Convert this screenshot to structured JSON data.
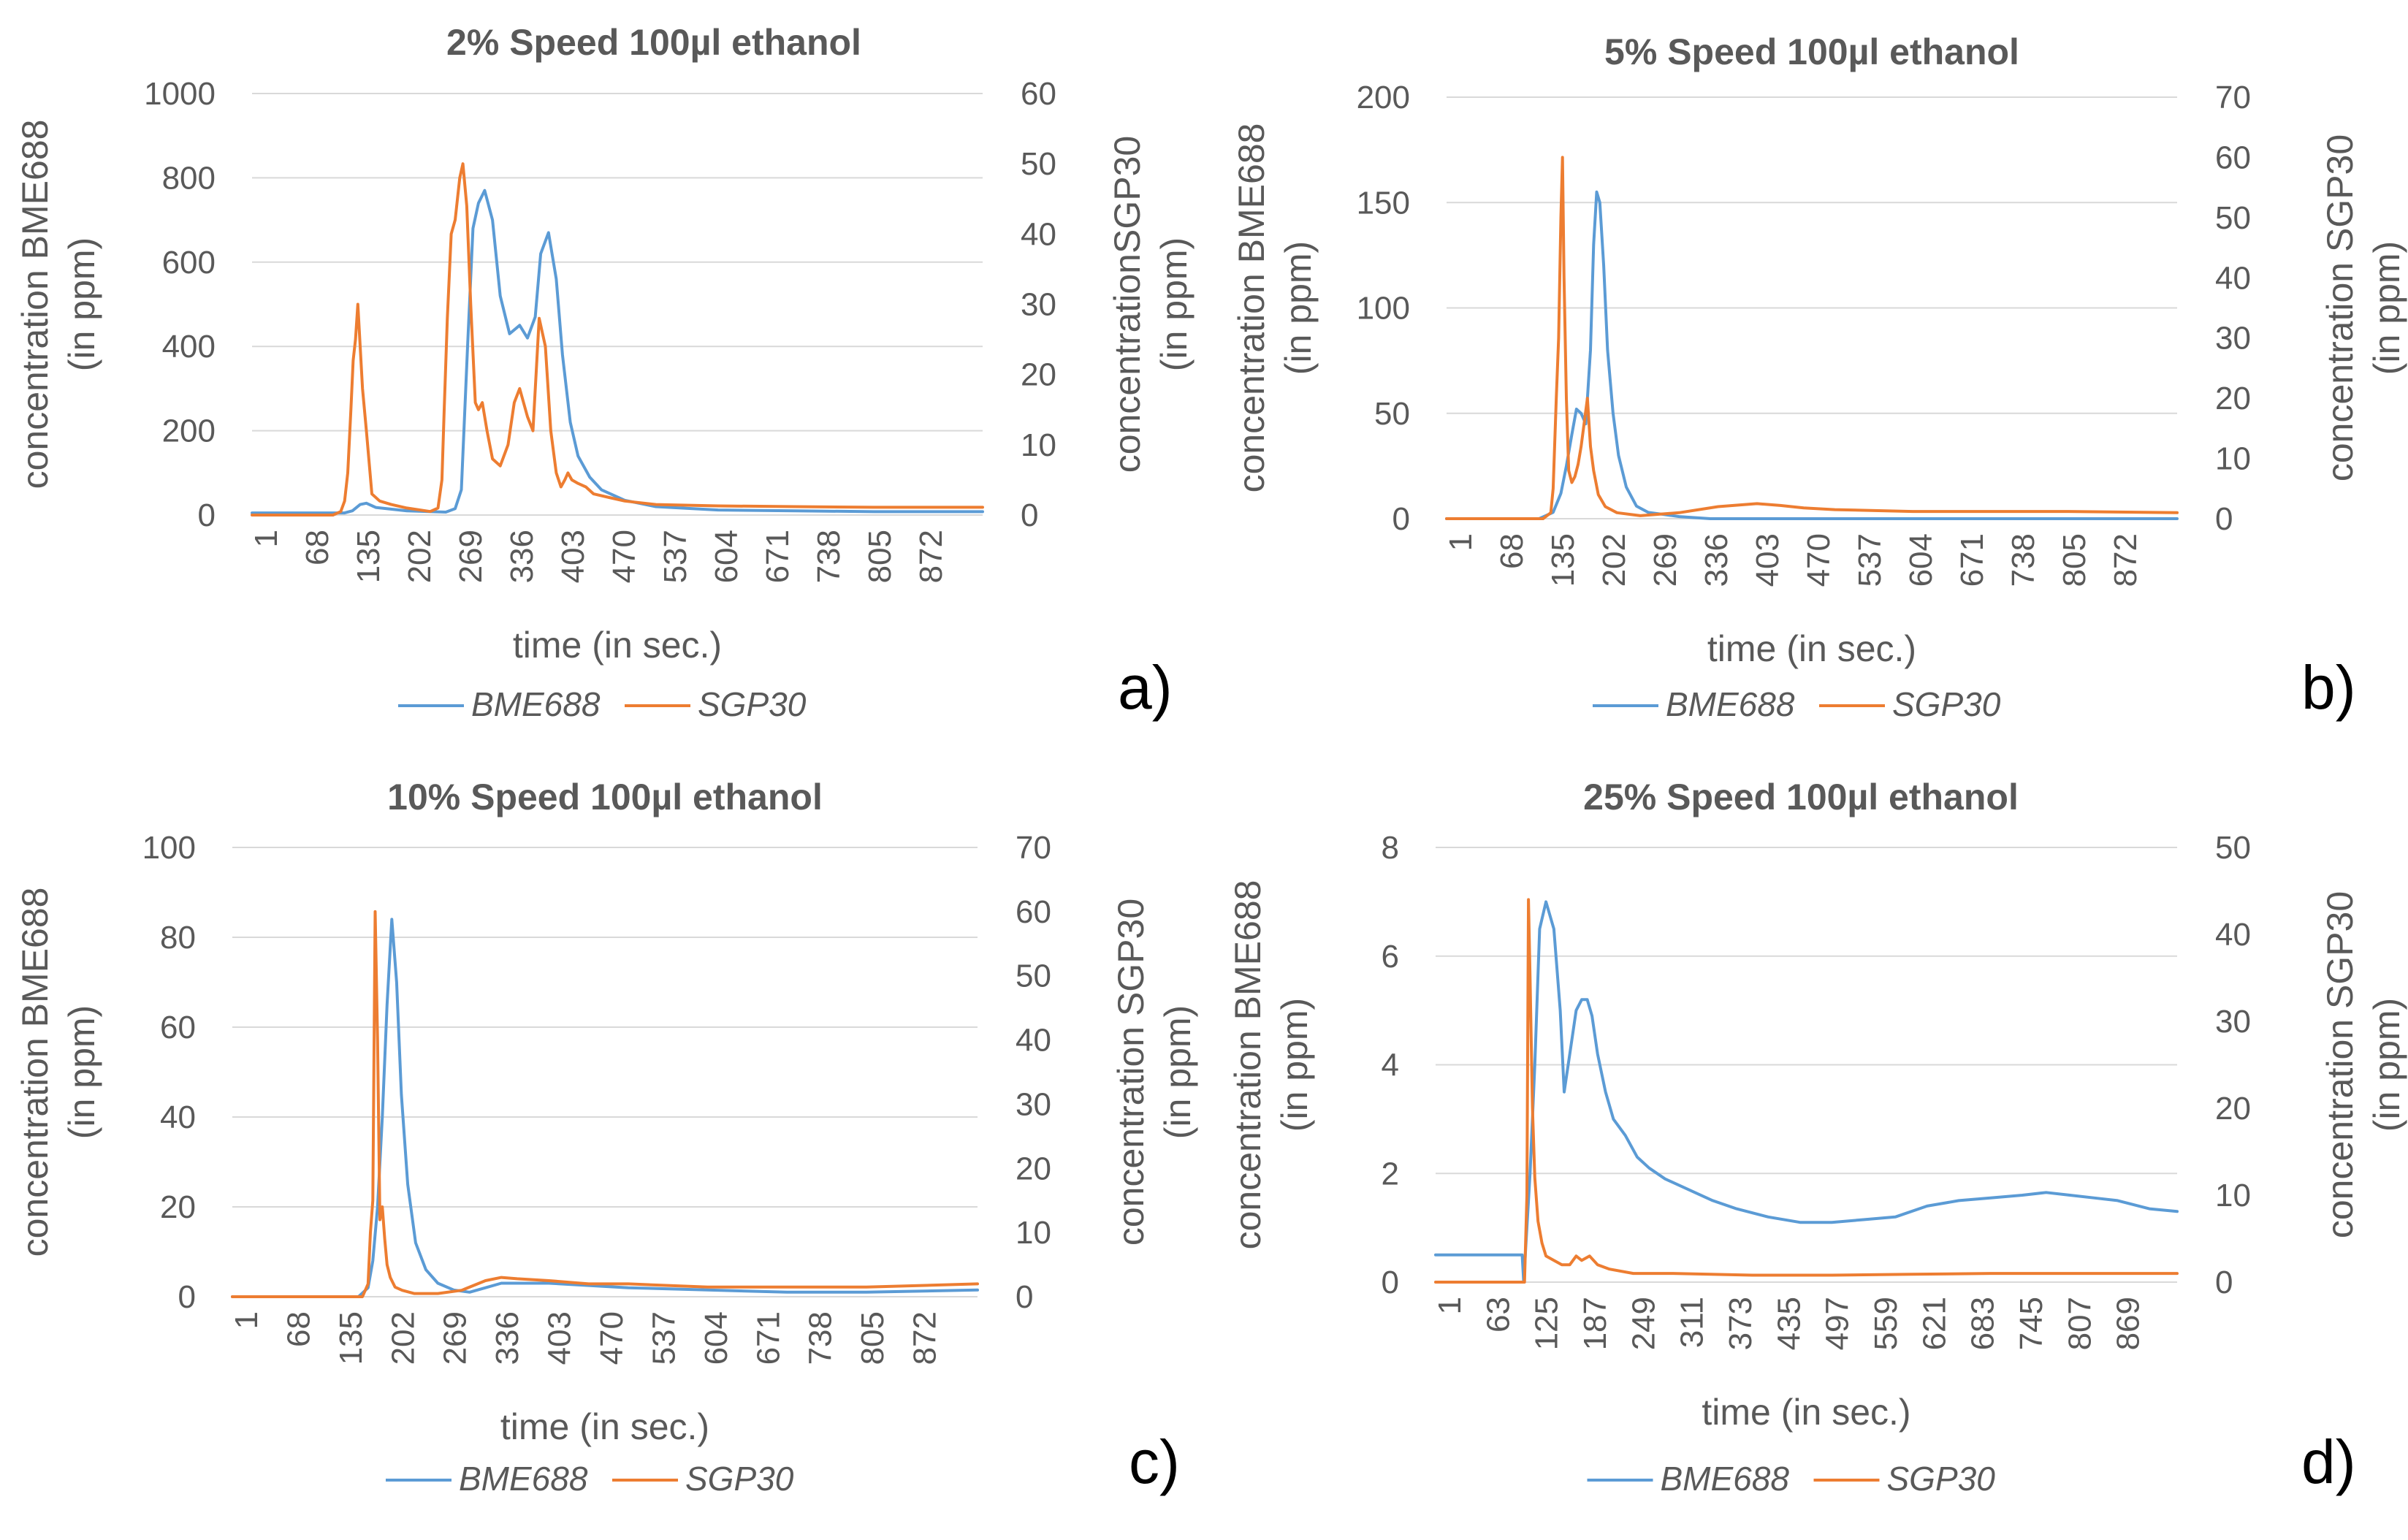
{
  "colors": {
    "bme": "#5b9bd5",
    "sgp": "#ed7d31",
    "grid": "#d9d9d9",
    "text": "#595959"
  },
  "chart_data": [
    {
      "type": "line",
      "panel_label": "a)",
      "title": "2% Speed 100µl ethanol",
      "xlabel": "time (in sec.)",
      "ylabel_left": [
        "concentration BME688",
        "(in ppm)"
      ],
      "ylabel_right": [
        "concentrationSGP30",
        "(in ppm)"
      ],
      "x_ticks": [
        "1",
        "68",
        "135",
        "202",
        "269",
        "336",
        "403",
        "470",
        "537",
        "604",
        "671",
        "738",
        "805",
        "872"
      ],
      "x_range": [
        1,
        940
      ],
      "ylim_left": [
        0,
        1000
      ],
      "yticks_left": [
        0,
        200,
        400,
        600,
        800,
        1000
      ],
      "ylim_right": [
        0,
        60
      ],
      "yticks_right": [
        0,
        10,
        20,
        30,
        40,
        50,
        60
      ],
      "legend": [
        "BME688",
        "SGP30"
      ],
      "series": [
        {
          "name": "BME688",
          "axis": "left",
          "x": [
            1,
            120,
            130,
            140,
            148,
            160,
            200,
            250,
            262,
            270,
            278,
            285,
            292,
            300,
            310,
            320,
            332,
            345,
            355,
            365,
            372,
            382,
            392,
            400,
            410,
            420,
            435,
            450,
            480,
            520,
            600,
            700,
            800,
            940
          ],
          "y": [
            5,
            5,
            10,
            25,
            28,
            18,
            10,
            7,
            15,
            60,
            400,
            680,
            740,
            770,
            700,
            520,
            430,
            450,
            420,
            470,
            620,
            670,
            560,
            380,
            220,
            140,
            90,
            60,
            35,
            20,
            12,
            10,
            8,
            8
          ]
        },
        {
          "name": "SGP30",
          "axis": "right",
          "x": [
            1,
            105,
            115,
            120,
            124,
            128,
            131,
            134,
            137,
            140,
            143,
            148,
            155,
            165,
            180,
            200,
            230,
            240,
            245,
            248,
            252,
            257,
            262,
            268,
            272,
            277,
            282,
            288,
            292,
            297,
            303,
            310,
            320,
            330,
            338,
            345,
            355,
            362,
            370,
            378,
            385,
            392,
            398,
            403,
            407,
            412,
            420,
            430,
            440,
            460,
            480,
            520,
            600,
            700,
            800,
            940
          ],
          "y": [
            0,
            0,
            0.5,
            2,
            6,
            15,
            22,
            25,
            30,
            24,
            18,
            12,
            3,
            2,
            1.5,
            1,
            0.5,
            1,
            5,
            15,
            28,
            40,
            42,
            48,
            50,
            44,
            30,
            16,
            15,
            16,
            12,
            8,
            7,
            10,
            16,
            18,
            14,
            12,
            28,
            24,
            12,
            6,
            4,
            5,
            6,
            5,
            4.5,
            4,
            3,
            2.5,
            2,
            1.5,
            1.3,
            1.2,
            1.1,
            1.1
          ]
        }
      ]
    },
    {
      "type": "line",
      "panel_label": "b)",
      "title": "5% Speed 100µl ethanol",
      "xlabel": "time (in sec.)",
      "ylabel_left": [
        "concentration BME688",
        "(in ppm)"
      ],
      "ylabel_right": [
        "concentration SGP30",
        "(in ppm)"
      ],
      "x_ticks": [
        "1",
        "68",
        "135",
        "202",
        "269",
        "336",
        "403",
        "470",
        "537",
        "604",
        "671",
        "738",
        "805",
        "872"
      ],
      "x_range": [
        1,
        940
      ],
      "ylim_left": [
        0,
        200
      ],
      "yticks_left": [
        0,
        50,
        100,
        150,
        200
      ],
      "ylim_right": [
        0,
        70
      ],
      "yticks_right": [
        0,
        10,
        20,
        30,
        40,
        50,
        60,
        70
      ],
      "legend": [
        "BME688",
        "SGP30"
      ],
      "series": [
        {
          "name": "BME688",
          "axis": "left",
          "x": [
            1,
            120,
            138,
            148,
            155,
            162,
            168,
            174,
            180,
            186,
            190,
            194,
            198,
            203,
            208,
            215,
            222,
            232,
            245,
            260,
            280,
            300,
            340,
            400,
            500,
            600,
            700,
            800,
            940
          ],
          "y": [
            0,
            0,
            3,
            12,
            25,
            40,
            52,
            50,
            45,
            80,
            130,
            155,
            150,
            120,
            80,
            50,
            30,
            15,
            6,
            3,
            2,
            1,
            0,
            0,
            0,
            0,
            0,
            0,
            0
          ]
        },
        {
          "name": "SGP30",
          "axis": "right",
          "x": [
            1,
            125,
            135,
            138,
            142,
            145,
            148,
            150,
            152,
            155,
            158,
            162,
            166,
            170,
            174,
            178,
            182,
            186,
            190,
            196,
            205,
            220,
            250,
            300,
            350,
            400,
            430,
            460,
            500,
            600,
            700,
            800,
            940
          ],
          "y": [
            0,
            0,
            1,
            5,
            20,
            30,
            50,
            60,
            40,
            20,
            8,
            6,
            7,
            9,
            12,
            16,
            20,
            12,
            8,
            4,
            2,
            1,
            0.5,
            1,
            2,
            2.5,
            2.2,
            1.8,
            1.5,
            1.2,
            1.2,
            1.2,
            1
          ]
        }
      ]
    },
    {
      "type": "line",
      "panel_label": "c)",
      "title": "10% Speed 100µl ethanol",
      "xlabel": "time (in sec.)",
      "ylabel_left": [
        "concentration BME688",
        "(in ppm)"
      ],
      "ylabel_right": [
        "concentration SGP30",
        "(in ppm)"
      ],
      "x_ticks": [
        "1",
        "68",
        "135",
        "202",
        "269",
        "336",
        "403",
        "470",
        "537",
        "604",
        "671",
        "738",
        "805",
        "872"
      ],
      "x_range": [
        1,
        940
      ],
      "ylim_left": [
        0,
        100
      ],
      "yticks_left": [
        0,
        20,
        40,
        60,
        80,
        100
      ],
      "ylim_right": [
        0,
        70
      ],
      "yticks_right": [
        0,
        10,
        20,
        30,
        40,
        50,
        60,
        70
      ],
      "legend": [
        "BME688",
        "SGP30"
      ],
      "series": [
        {
          "name": "BME688",
          "axis": "left",
          "x": [
            1,
            160,
            172,
            178,
            184,
            190,
            196,
            202,
            208,
            214,
            222,
            232,
            245,
            260,
            280,
            300,
            320,
            340,
            360,
            400,
            450,
            500,
            600,
            700,
            800,
            940
          ],
          "y": [
            0,
            0,
            2,
            8,
            20,
            40,
            65,
            84,
            70,
            45,
            25,
            12,
            6,
            3,
            1.5,
            1,
            2,
            3,
            3,
            3,
            2.5,
            2,
            1.5,
            1,
            1,
            1.5
          ]
        },
        {
          "name": "SGP30",
          "axis": "right",
          "x": [
            1,
            165,
            172,
            175,
            178,
            181,
            184,
            187,
            190,
            193,
            196,
            200,
            206,
            215,
            230,
            260,
            290,
            320,
            340,
            360,
            400,
            450,
            500,
            600,
            700,
            800,
            940
          ],
          "y": [
            0,
            0,
            2,
            10,
            15,
            60,
            40,
            12,
            14,
            9,
            5,
            3,
            1.5,
            1,
            0.5,
            0.5,
            1,
            2.5,
            3,
            2.8,
            2.5,
            2,
            2,
            1.5,
            1.5,
            1.5,
            2
          ]
        }
      ]
    },
    {
      "type": "line",
      "panel_label": "d)",
      "title": "25% Speed 100µl ethanol",
      "xlabel": "time (in sec.)",
      "ylabel_left": [
        "concentration BME688",
        "(in ppm)"
      ],
      "ylabel_right": [
        "concentration SGP30",
        "(in ppm)"
      ],
      "x_ticks": [
        "1",
        "63",
        "125",
        "187",
        "249",
        "311",
        "373",
        "435",
        "497",
        "559",
        "621",
        "683",
        "745",
        "807",
        "869"
      ],
      "x_range": [
        1,
        935
      ],
      "ylim_left": [
        0,
        8
      ],
      "yticks_left": [
        0,
        2,
        4,
        6,
        8
      ],
      "ylim_right": [
        0,
        50
      ],
      "yticks_right": [
        0,
        10,
        20,
        30,
        40,
        50
      ],
      "legend": [
        "BME688",
        "SGP30"
      ],
      "series": [
        {
          "name": "BME688",
          "axis": "left",
          "x": [
            1,
            110,
            112,
            120,
            126,
            132,
            140,
            150,
            158,
            163,
            170,
            178,
            185,
            192,
            198,
            205,
            215,
            225,
            240,
            255,
            270,
            290,
            320,
            350,
            380,
            420,
            460,
            500,
            540,
            580,
            620,
            660,
            700,
            740,
            770,
            800,
            830,
            860,
            900,
            935
          ],
          "y": [
            0.5,
            0.5,
            0,
            2,
            4,
            6.5,
            7,
            6.5,
            5,
            3.5,
            4.2,
            5,
            5.2,
            5.2,
            4.9,
            4.2,
            3.5,
            3,
            2.7,
            2.3,
            2.1,
            1.9,
            1.7,
            1.5,
            1.35,
            1.2,
            1.1,
            1.1,
            1.15,
            1.2,
            1.4,
            1.5,
            1.55,
            1.6,
            1.65,
            1.6,
            1.55,
            1.5,
            1.35,
            1.3
          ]
        },
        {
          "name": "SGP30",
          "axis": "right",
          "x": [
            1,
            113,
            116,
            118,
            120,
            123,
            126,
            130,
            135,
            140,
            150,
            160,
            170,
            178,
            185,
            195,
            205,
            220,
            250,
            300,
            400,
            500,
            600,
            700,
            800,
            900,
            935
          ],
          "y": [
            0,
            0,
            10,
            44,
            35,
            20,
            12,
            7,
            4.5,
            3,
            2.5,
            2,
            2,
            3,
            2.5,
            3,
            2,
            1.5,
            1,
            1,
            0.8,
            0.8,
            0.9,
            1,
            1,
            1,
            1
          ]
        }
      ]
    }
  ]
}
